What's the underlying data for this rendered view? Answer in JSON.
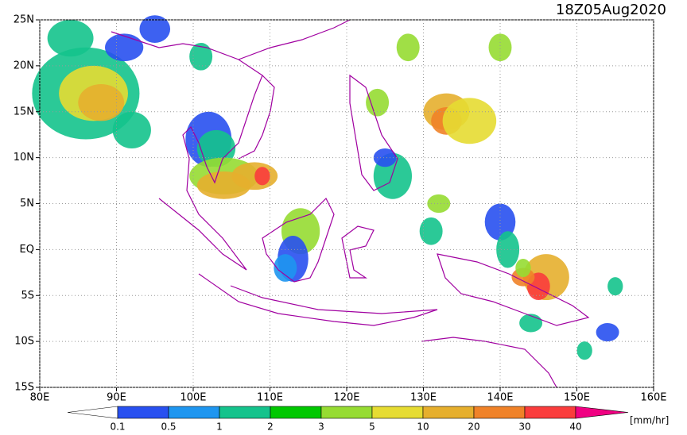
{
  "title": "18Z05Aug2020",
  "map": {
    "lon_range": [
      80,
      160
    ],
    "lat_range": [
      -15,
      25
    ],
    "lon_ticks": [
      {
        "value": 80,
        "label": "80E"
      },
      {
        "value": 90,
        "label": "90E"
      },
      {
        "value": 100,
        "label": "100E"
      },
      {
        "value": 110,
        "label": "110E"
      },
      {
        "value": 120,
        "label": "120E"
      },
      {
        "value": 130,
        "label": "130E"
      },
      {
        "value": 140,
        "label": "140E"
      },
      {
        "value": 150,
        "label": "150E"
      },
      {
        "value": 160,
        "label": "160E"
      }
    ],
    "lat_ticks": [
      {
        "value": 25,
        "label": "25N"
      },
      {
        "value": 20,
        "label": "20N"
      },
      {
        "value": 15,
        "label": "15N"
      },
      {
        "value": 10,
        "label": "10N"
      },
      {
        "value": 5,
        "label": "5N"
      },
      {
        "value": 0,
        "label": "EQ"
      },
      {
        "value": -5,
        "label": "5S"
      },
      {
        "value": -10,
        "label": "10S"
      },
      {
        "value": -15,
        "label": "15S"
      }
    ],
    "grid": true
  },
  "colorbar": {
    "levels": [
      0.1,
      0.5,
      1,
      2,
      3,
      5,
      10,
      20,
      30,
      40
    ],
    "colors": [
      "#ffffff",
      "#2850f0",
      "#1e96f0",
      "#14c38c",
      "#00c800",
      "#96dc32",
      "#e6dc32",
      "#e6af2d",
      "#f08228",
      "#fa3c3c",
      "#f00082"
    ],
    "unit": "[mm/hr]"
  }
}
